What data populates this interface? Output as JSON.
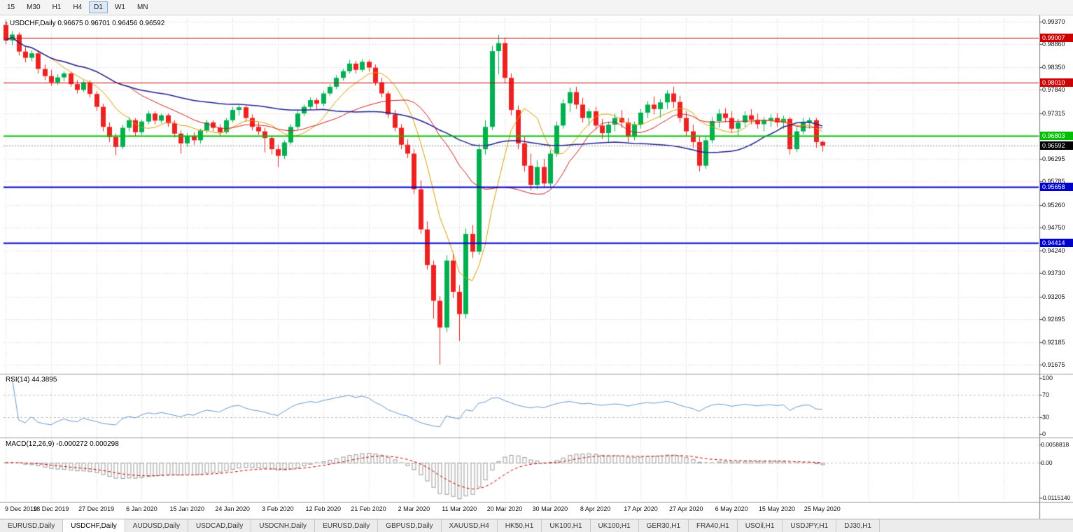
{
  "toolbar": {
    "timeframes": [
      {
        "label": "15",
        "active": false
      },
      {
        "label": "M30",
        "active": false
      },
      {
        "label": "H1",
        "active": false
      },
      {
        "label": "H4",
        "active": false
      },
      {
        "label": "D1",
        "active": true
      },
      {
        "label": "W1",
        "active": false
      },
      {
        "label": "MN",
        "active": false
      }
    ]
  },
  "chart_data": {
    "type": "candlestick",
    "symbol": "USDCHF",
    "timeframe": "Daily",
    "title": "USDCHF,Daily 0.96675 0.96701 0.96456 0.96592",
    "last_ohlc": {
      "open": 0.96675,
      "high": 0.96701,
      "low": 0.96456,
      "close": 0.96592
    },
    "y_axis": {
      "top_price": 0.9937,
      "bottom_price": 0.91675,
      "tick_labels": [
        "0.99370",
        "0.98860",
        "0.98350",
        "0.97840",
        "0.97315",
        "0.96805",
        "0.96295",
        "0.95785",
        "0.95260",
        "0.94750",
        "0.94240",
        "0.93730",
        "0.93205",
        "0.92695",
        "0.92185",
        "0.91675"
      ]
    },
    "x_axis": {
      "candles_per_tick": 7,
      "tick_labels": [
        "9 Dec 2019",
        "18 Dec 2019",
        "27 Dec 2019",
        "6 Jan 2020",
        "15 Jan 2020",
        "24 Jan 2020",
        "3 Feb 2020",
        "12 Feb 2020",
        "21 Feb 2020",
        "2 Mar 2020",
        "11 Mar 2020",
        "20 Mar 2020",
        "30 Mar 2020",
        "8 Apr 2020",
        "17 Apr 2020",
        "27 Apr 2020",
        "6 May 2020",
        "15 May 2020",
        "25 May 2020"
      ]
    },
    "candles": [
      [
        0.993,
        0.9941,
        0.9886,
        0.9895
      ],
      [
        0.9895,
        0.9916,
        0.9884,
        0.9908
      ],
      [
        0.9908,
        0.9913,
        0.9861,
        0.987
      ],
      [
        0.987,
        0.9881,
        0.9846,
        0.9856
      ],
      [
        0.9856,
        0.9873,
        0.9848,
        0.9866
      ],
      [
        0.9866,
        0.9869,
        0.9821,
        0.9831
      ],
      [
        0.9831,
        0.9841,
        0.9806,
        0.9815
      ],
      [
        0.9815,
        0.9829,
        0.9793,
        0.9801
      ],
      [
        0.9801,
        0.9819,
        0.9795,
        0.9812
      ],
      [
        0.9812,
        0.9826,
        0.9803,
        0.9821
      ],
      [
        0.9821,
        0.9825,
        0.9791,
        0.9797
      ],
      [
        0.9797,
        0.9806,
        0.9776,
        0.9784
      ],
      [
        0.9784,
        0.9805,
        0.9779,
        0.9801
      ],
      [
        0.9801,
        0.9806,
        0.9767,
        0.9775
      ],
      [
        0.9775,
        0.9781,
        0.9737,
        0.9746
      ],
      [
        0.9746,
        0.9753,
        0.9691,
        0.9701
      ],
      [
        0.9701,
        0.9711,
        0.9667,
        0.9678
      ],
      [
        0.9678,
        0.9686,
        0.9638,
        0.9656
      ],
      [
        0.9656,
        0.9706,
        0.9651,
        0.9699
      ],
      [
        0.9699,
        0.9723,
        0.9691,
        0.9716
      ],
      [
        0.9716,
        0.9721,
        0.9681,
        0.9689
      ],
      [
        0.9689,
        0.9717,
        0.9683,
        0.9713
      ],
      [
        0.9713,
        0.9737,
        0.9707,
        0.9731
      ],
      [
        0.9731,
        0.9736,
        0.9707,
        0.9715
      ],
      [
        0.9715,
        0.9731,
        0.9709,
        0.9727
      ],
      [
        0.9727,
        0.9731,
        0.9701,
        0.9709
      ],
      [
        0.9709,
        0.9716,
        0.9677,
        0.9686
      ],
      [
        0.9686,
        0.9693,
        0.9641,
        0.9664
      ],
      [
        0.9664,
        0.9687,
        0.9657,
        0.9681
      ],
      [
        0.9681,
        0.9689,
        0.9661,
        0.9671
      ],
      [
        0.9671,
        0.9697,
        0.9664,
        0.9693
      ],
      [
        0.9693,
        0.9717,
        0.9687,
        0.9711
      ],
      [
        0.9711,
        0.9716,
        0.9691,
        0.9699
      ],
      [
        0.9699,
        0.9707,
        0.9681,
        0.9689
      ],
      [
        0.9689,
        0.9721,
        0.9685,
        0.9716
      ],
      [
        0.9716,
        0.9746,
        0.9711,
        0.9739
      ],
      [
        0.9739,
        0.9749,
        0.9727,
        0.9745
      ],
      [
        0.9745,
        0.9749,
        0.9713,
        0.9721
      ],
      [
        0.9721,
        0.9729,
        0.9693,
        0.9701
      ],
      [
        0.9701,
        0.9711,
        0.9683,
        0.9691
      ],
      [
        0.9691,
        0.9699,
        0.9644,
        0.9676
      ],
      [
        0.9676,
        0.9681,
        0.9639,
        0.9651
      ],
      [
        0.9651,
        0.9661,
        0.9611,
        0.9636
      ],
      [
        0.9636,
        0.9671,
        0.9629,
        0.9666
      ],
      [
        0.9666,
        0.9707,
        0.9661,
        0.9701
      ],
      [
        0.9701,
        0.9737,
        0.9696,
        0.9731
      ],
      [
        0.9731,
        0.9751,
        0.9725,
        0.9746
      ],
      [
        0.9746,
        0.9767,
        0.9741,
        0.9761
      ],
      [
        0.9761,
        0.9766,
        0.9741,
        0.9753
      ],
      [
        0.9753,
        0.9781,
        0.9747,
        0.9776
      ],
      [
        0.9776,
        0.9797,
        0.9771,
        0.9791
      ],
      [
        0.9791,
        0.9817,
        0.9786,
        0.9811
      ],
      [
        0.9811,
        0.9831,
        0.9805,
        0.9826
      ],
      [
        0.9826,
        0.9851,
        0.9821,
        0.9843
      ],
      [
        0.9843,
        0.9849,
        0.9821,
        0.9829
      ],
      [
        0.9829,
        0.9853,
        0.9824,
        0.9847
      ],
      [
        0.9847,
        0.9851,
        0.9825,
        0.9834
      ],
      [
        0.9834,
        0.9841,
        0.9794,
        0.9801
      ],
      [
        0.9801,
        0.9811,
        0.9767,
        0.9776
      ],
      [
        0.9776,
        0.9781,
        0.9721,
        0.9729
      ],
      [
        0.9729,
        0.9739,
        0.9691,
        0.9699
      ],
      [
        0.9699,
        0.9707,
        0.9651,
        0.9661
      ],
      [
        0.9661,
        0.9673,
        0.9631,
        0.9641
      ],
      [
        0.9641,
        0.9651,
        0.9551,
        0.9561
      ],
      [
        0.9561,
        0.9581,
        0.9461,
        0.9471
      ],
      [
        0.9471,
        0.9489,
        0.9381,
        0.9391
      ],
      [
        0.9391,
        0.9401,
        0.9271,
        0.9311
      ],
      [
        0.9311,
        0.9321,
        0.9168,
        0.9251
      ],
      [
        0.9251,
        0.9413,
        0.9241,
        0.9401
      ],
      [
        0.9401,
        0.9416,
        0.9317,
        0.9331
      ],
      [
        0.9331,
        0.9346,
        0.9221,
        0.9281
      ],
      [
        0.9281,
        0.9473,
        0.9271,
        0.9461
      ],
      [
        0.9461,
        0.9481,
        0.9407,
        0.9421
      ],
      [
        0.9421,
        0.9663,
        0.9414,
        0.9651
      ],
      [
        0.9651,
        0.9716,
        0.9639,
        0.9701
      ],
      [
        0.9701,
        0.9883,
        0.9694,
        0.9871
      ],
      [
        0.9871,
        0.9908,
        0.9819,
        0.9889
      ],
      [
        0.9889,
        0.9901,
        0.9799,
        0.9811
      ],
      [
        0.9811,
        0.9821,
        0.9727,
        0.9739
      ],
      [
        0.9739,
        0.9749,
        0.9651,
        0.9664
      ],
      [
        0.9664,
        0.9681,
        0.9601,
        0.9614
      ],
      [
        0.9614,
        0.9641,
        0.9559,
        0.9571
      ],
      [
        0.9571,
        0.9626,
        0.9561,
        0.9611
      ],
      [
        0.9611,
        0.9629,
        0.9564,
        0.9574
      ],
      [
        0.9574,
        0.9649,
        0.9567,
        0.9641
      ],
      [
        0.9641,
        0.9713,
        0.9634,
        0.9704
      ],
      [
        0.9704,
        0.9763,
        0.9697,
        0.9754
      ],
      [
        0.9754,
        0.9789,
        0.9734,
        0.9779
      ],
      [
        0.9779,
        0.9791,
        0.9741,
        0.9751
      ],
      [
        0.9751,
        0.9766,
        0.9711,
        0.9721
      ],
      [
        0.9721,
        0.9743,
        0.9704,
        0.9736
      ],
      [
        0.9736,
        0.9746,
        0.9694,
        0.9704
      ],
      [
        0.9704,
        0.9719,
        0.9674,
        0.9687
      ],
      [
        0.9687,
        0.9713,
        0.9667,
        0.9706
      ],
      [
        0.9706,
        0.9731,
        0.9691,
        0.9721
      ],
      [
        0.9721,
        0.9739,
        0.9699,
        0.9711
      ],
      [
        0.9711,
        0.9721,
        0.9667,
        0.9679
      ],
      [
        0.9679,
        0.9713,
        0.9671,
        0.9706
      ],
      [
        0.9706,
        0.9741,
        0.9697,
        0.9733
      ],
      [
        0.9733,
        0.9759,
        0.9721,
        0.9751
      ],
      [
        0.9751,
        0.9769,
        0.9729,
        0.9741
      ],
      [
        0.9741,
        0.9763,
        0.9721,
        0.9756
      ],
      [
        0.9756,
        0.9783,
        0.9741,
        0.9776
      ],
      [
        0.9776,
        0.9791,
        0.9744,
        0.9757
      ],
      [
        0.9757,
        0.9771,
        0.9711,
        0.9721
      ],
      [
        0.9721,
        0.9736,
        0.9681,
        0.9691
      ],
      [
        0.9691,
        0.9706,
        0.9654,
        0.9667
      ],
      [
        0.9667,
        0.9681,
        0.9601,
        0.9614
      ],
      [
        0.9614,
        0.9681,
        0.9607,
        0.9671
      ],
      [
        0.9671,
        0.9723,
        0.9664,
        0.9714
      ],
      [
        0.9714,
        0.9741,
        0.9699,
        0.9731
      ],
      [
        0.9731,
        0.9743,
        0.9711,
        0.9721
      ],
      [
        0.9721,
        0.9736,
        0.9687,
        0.9697
      ],
      [
        0.9697,
        0.9719,
        0.9681,
        0.9711
      ],
      [
        0.9711,
        0.9736,
        0.9701,
        0.9727
      ],
      [
        0.9727,
        0.9741,
        0.9707,
        0.9717
      ],
      [
        0.9717,
        0.9731,
        0.9697,
        0.9707
      ],
      [
        0.9707,
        0.9723,
        0.9691,
        0.9716
      ],
      [
        0.9716,
        0.9729,
        0.9701,
        0.9721
      ],
      [
        0.9721,
        0.9731,
        0.9701,
        0.9711
      ],
      [
        0.9711,
        0.9726,
        0.9697,
        0.9719
      ],
      [
        0.9719,
        0.9723,
        0.9639,
        0.9651
      ],
      [
        0.9651,
        0.9701,
        0.9644,
        0.9691
      ],
      [
        0.9691,
        0.9721,
        0.9684,
        0.9712
      ],
      [
        0.9712,
        0.9722,
        0.9697,
        0.9716
      ],
      [
        0.9716,
        0.9721,
        0.9654,
        0.9667
      ],
      [
        0.96675,
        0.96701,
        0.96456,
        0.96592
      ]
    ],
    "h_lines": [
      {
        "price": 0.99007,
        "label": "0.99007",
        "color": "#cc0000",
        "width": 1
      },
      {
        "price": 0.9801,
        "label": "0.98010",
        "color": "#cc0000",
        "width": 1
      },
      {
        "price": 0.96803,
        "label": "0.96803",
        "color": "#00bf00",
        "width": 2
      },
      {
        "price": 0.95658,
        "label": "0.95658",
        "color": "#0000cc",
        "width": 2
      },
      {
        "price": 0.94414,
        "label": "0.94414",
        "color": "#0000cc",
        "width": 2
      }
    ],
    "current_price": {
      "value": 0.96592,
      "label": "0.96592",
      "bg": "#000000"
    },
    "moving_averages": [
      {
        "name": "fast",
        "period": 8,
        "color": "#d8a000",
        "width": 1
      },
      {
        "name": "medium",
        "period": 20,
        "color": "#cc2020",
        "width": 1
      },
      {
        "name": "slow",
        "period": 50,
        "color": "#202090",
        "width": 1.5
      }
    ],
    "colors": {
      "bull": "#00b050",
      "bear": "#ee2020",
      "grid": "#d4d4d4",
      "background": "#ffffff"
    },
    "indicators": {
      "rsi": {
        "label": "RSI(14) 44.3895",
        "period": 14,
        "last_value": 44.3895,
        "levels": [
          "100",
          "70",
          "30",
          "0"
        ],
        "dashed_levels": [
          70,
          30
        ],
        "color": "#6699cc"
      },
      "macd": {
        "label": "MACD(12,26,9) -0.000272 0.000298",
        "fast": 12,
        "slow": 26,
        "signal_period": 9,
        "last_main": -0.000272,
        "last_signal": 0.000298,
        "y_tick_labels": [
          "0.0058818",
          "0.00",
          "-0.0115140"
        ],
        "y_max": 0.0058818,
        "y_min": -0.011514,
        "histogram_color": "#999999",
        "signal_color": "#cc0000"
      }
    }
  },
  "bottom_tabs": [
    {
      "label": "EURUSD,Daily",
      "active": false
    },
    {
      "label": "USDCHF,Daily",
      "active": true
    },
    {
      "label": "AUDUSD,Daily",
      "active": false
    },
    {
      "label": "USDCAD,Daily",
      "active": false
    },
    {
      "label": "USDCNH,Daily",
      "active": false
    },
    {
      "label": "EURUSD,Daily",
      "active": false
    },
    {
      "label": "GBPUSD,Daily",
      "active": false
    },
    {
      "label": "XAUUSD,H4",
      "active": false
    },
    {
      "label": "HK50,H1",
      "active": false
    },
    {
      "label": "UK100,H1",
      "active": false
    },
    {
      "label": "UK100,H1",
      "active": false
    },
    {
      "label": "GER30,H1",
      "active": false
    },
    {
      "label": "FRA40,H1",
      "active": false
    },
    {
      "label": "USOil,H1",
      "active": false
    },
    {
      "label": "USDJPY,H1",
      "active": false
    },
    {
      "label": "DJ30,H1",
      "active": false
    }
  ]
}
